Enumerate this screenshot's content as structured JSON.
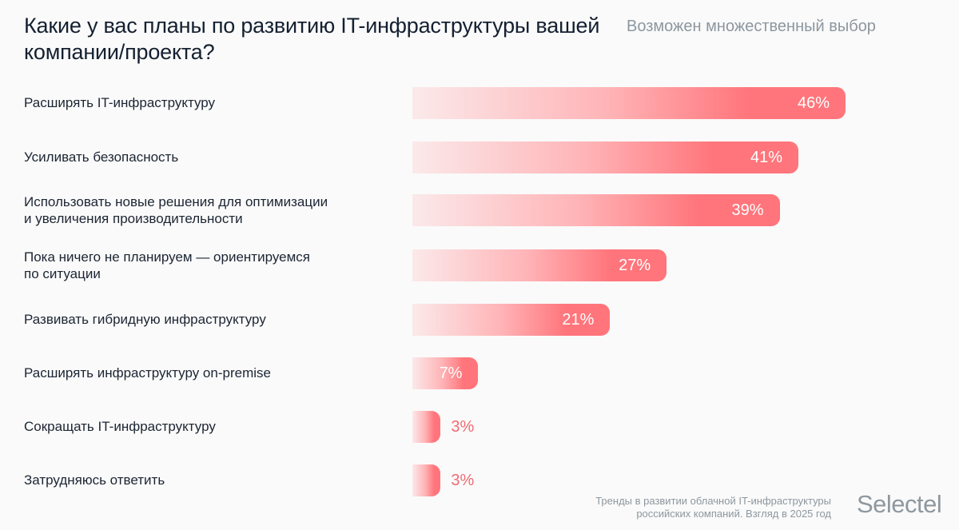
{
  "header": {
    "title": "Какие у вас планы по развитию IT-инфраструктуры вашей компании/проекта?",
    "note": "Возможен множественный выбор"
  },
  "colors": {
    "bar_start": "#fbe9ea",
    "bar_end": "#ff757b",
    "value_inside": "#ffffff",
    "value_outside": "#f06b73"
  },
  "chart_data": {
    "type": "bar",
    "orientation": "horizontal",
    "title": "Какие у вас планы по развитию IT-инфраструктуры вашей компании/проекта?",
    "subtitle": "Возможен множественный выбор",
    "categories": [
      "Расширять IT-инфраструктуру",
      "Усиливать безопасность",
      "Использовать новые решения для оптимизации и увеличения производительности",
      "Пока ничего не планируем — ориентируемся по ситуации",
      "Развивать гибридную инфраструктуру",
      "Расширять инфраструктуру on-premise",
      "Сокращать IT-инфраструктуру",
      "Затрудняюсь ответить"
    ],
    "values": [
      46,
      41,
      39,
      27,
      21,
      7,
      3,
      3
    ],
    "value_labels": [
      "46%",
      "41%",
      "39%",
      "27%",
      "21%",
      "7%",
      "3%",
      "3%"
    ],
    "unit": "%",
    "xlabel": "",
    "ylabel": "",
    "grid": false,
    "legend": "none"
  },
  "footer": {
    "source_line1": "Тренды в развитии облачной IT-инфраструктуры",
    "source_line2": "российских компаний. Взгляд в 2025 год",
    "logo": "Selectel"
  }
}
